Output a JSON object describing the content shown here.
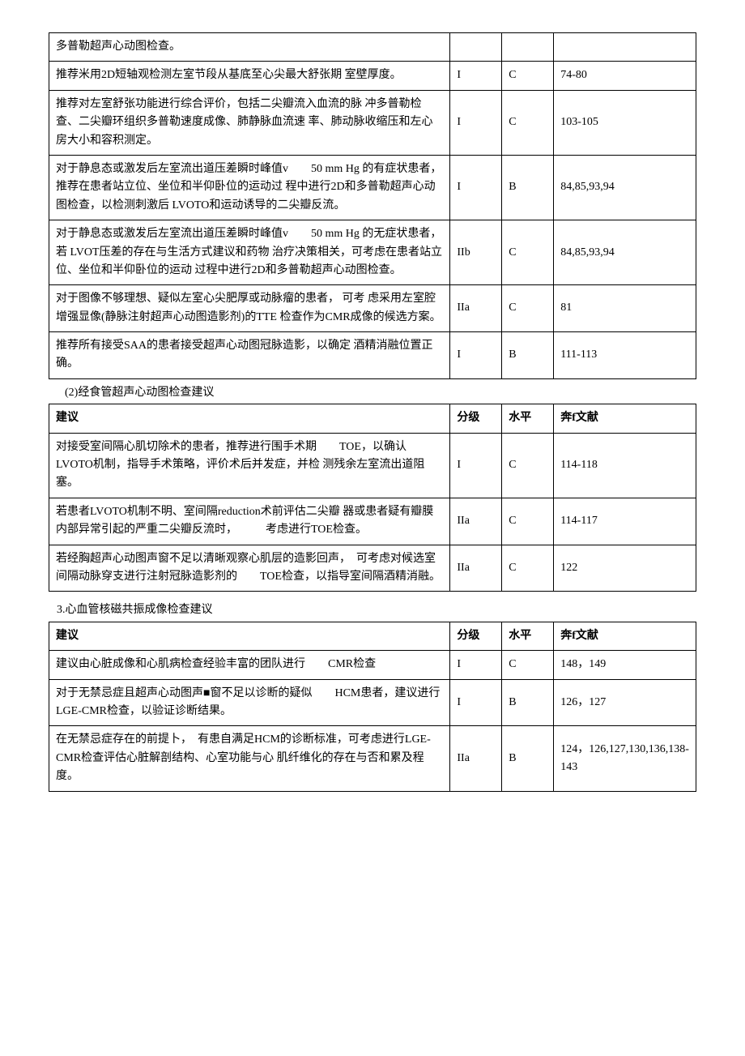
{
  "table1": {
    "rows": [
      {
        "rec": "多普勒超声心动图检查。",
        "grade": "",
        "level": "",
        "ref": ""
      },
      {
        "rec": "推荐米用2D短轴观检测左室节段从基底至心尖最大舒张期 室壁厚度。",
        "grade": "I",
        "level": "C",
        "ref": "74-80"
      },
      {
        "rec": "推荐对左室舒张功能进行综合评价，包括二尖瓣流入血流的脉 冲多普勒检查、二尖瓣环组织多普勒速度成像、肺静脉血流速 率、肺动脉收缩压和左心房大小和容积测定。",
        "grade": "I",
        "level": "C",
        "ref": "103-105"
      },
      {
        "rec": "对于静息态或激发后左室流出道压差瞬时峰值v　　50 mm Hg 的有症状患者，推荐在患者站立位、坐位和半仰卧位的运动过 程中进行2D和多普勒超声心动图检查，以检测刺激后 LVOTO和运动诱导的二尖瓣反流。",
        "grade": "I",
        "level": "B",
        "ref": "84,85,93,94"
      },
      {
        "rec": "对于静息态或激发后左室流出道压差瞬时峰值v　　50 mm Hg 的无症状患者，若 LVOT压差的存在与生活方式建议和药物 治疗决策相关，可考虑在患者站立位、坐位和半仰卧位的运动 过程中进行2D和多普勒超声心动图检查。",
        "grade": "IIb",
        "level": "C",
        "ref": "84,85,93,94"
      },
      {
        "rec": "对于图像不够理想、疑似左室心尖肥厚或动脉瘤的患者， 可考 虑采用左室腔增强显像(静脉注射超声心动图造影剂)的TTE 检查作为CMR成像的候选方案。",
        "grade": "IIa",
        "level": "C",
        "ref": "81"
      },
      {
        "rec": "推荐所有接受SAA的患者接受超声心动图冠脉造影，以确定 酒精消融位置正确。",
        "grade": "I",
        "level": "B",
        "ref": "111-113"
      }
    ]
  },
  "caption2": "(2)经食管超声心动图检查建议",
  "table2": {
    "headers": {
      "rec": "建议",
      "grade": "分级",
      "level": "水平",
      "ref": "奔f文献"
    },
    "rows": [
      {
        "rec": "对接受室间隔心肌切除术的患者，推荐进行围手术期　　TOE，以确认LVOTO机制，指导手术策略，评价术后并发症，并检 测残余左室流出道阻塞。",
        "grade": "I",
        "level": "C",
        "ref": "114-118"
      },
      {
        "rec": "若患者LVOTO机制不明、室间隔reduction术前评估二尖瓣 器或患者疑有瓣膜内部异常引起的严重二尖瓣反流时，　　　考虑进行TOE检查。",
        "grade": "IIa",
        "level": "C",
        "ref": "114-117"
      },
      {
        "rec": "若经胸超声心动图声窗不足以清晰观察心肌层的造影回声，　可考虑对候选室间隔动脉穿支进行注射冠脉造影剂的　　TOE检查，以指导室间隔酒精消融。",
        "grade": "IIa",
        "level": "C",
        "ref": "122"
      }
    ]
  },
  "caption3": "3.心血管核磁共振成像检查建议",
  "table3": {
    "headers": {
      "rec": "建议",
      "grade": "分级",
      "level": "水平",
      "ref": "奔f文献"
    },
    "rows": [
      {
        "rec": "建议由心脏成像和心肌病检查经验丰富的团队进行　　CMR检查",
        "grade": "I",
        "level": "C",
        "ref": "148，149"
      },
      {
        "rec": "对于无禁忌症且超声心动图声■窗不足以诊断的疑似　　HCM患者，建议进行LGE-CMR检查，以验证诊断结果。",
        "grade": "I",
        "level": "B",
        "ref": "126，127"
      },
      {
        "rec": "在无禁忌症存在的前提卜，　有患自满足HCM的诊断标准，可考虑进行LGE-CMR检查评估心脏解剖结构、心室功能与心 肌纤维化的存在与否和累及程度。",
        "grade": "IIa",
        "level": "B",
        "ref": "124，126,127,130,136,138-143"
      }
    ]
  },
  "style": {
    "font_family": "SimSun",
    "font_size_pt": 10.5,
    "border_color": "#000000",
    "background_color": "#ffffff",
    "text_color": "#000000",
    "col_widths_pct": [
      62,
      8,
      8,
      22
    ]
  }
}
